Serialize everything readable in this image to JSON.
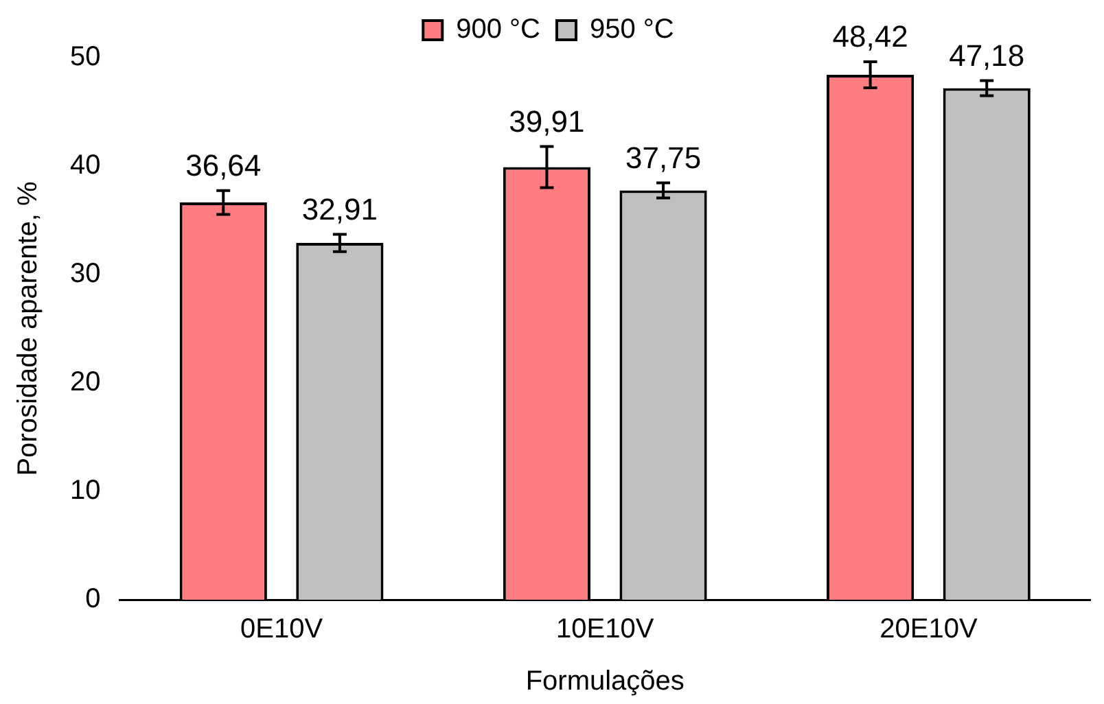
{
  "chart_data": {
    "type": "bar",
    "xlabel": "Formulações",
    "ylabel": "Porosidade aparente, %",
    "categories": [
      "0E10V",
      "10E10V",
      "20E10V"
    ],
    "series": [
      {
        "name": "900 °C",
        "color": "#ff7c80",
        "values": [
          36.64,
          39.91,
          48.42
        ],
        "value_labels": [
          "36,64",
          "39,91",
          "48,42"
        ],
        "errors": [
          1.1,
          1.9,
          1.2
        ]
      },
      {
        "name": "950 °C",
        "color": "#bfbfbf",
        "values": [
          32.91,
          37.75,
          47.18
        ],
        "value_labels": [
          "32,91",
          "37,75",
          "47,18"
        ],
        "errors": [
          0.8,
          0.7,
          0.7
        ]
      }
    ],
    "ylim": [
      0,
      50
    ],
    "yticks": [
      0,
      10,
      20,
      30,
      40,
      50
    ],
    "grid": false,
    "legend": "top"
  }
}
